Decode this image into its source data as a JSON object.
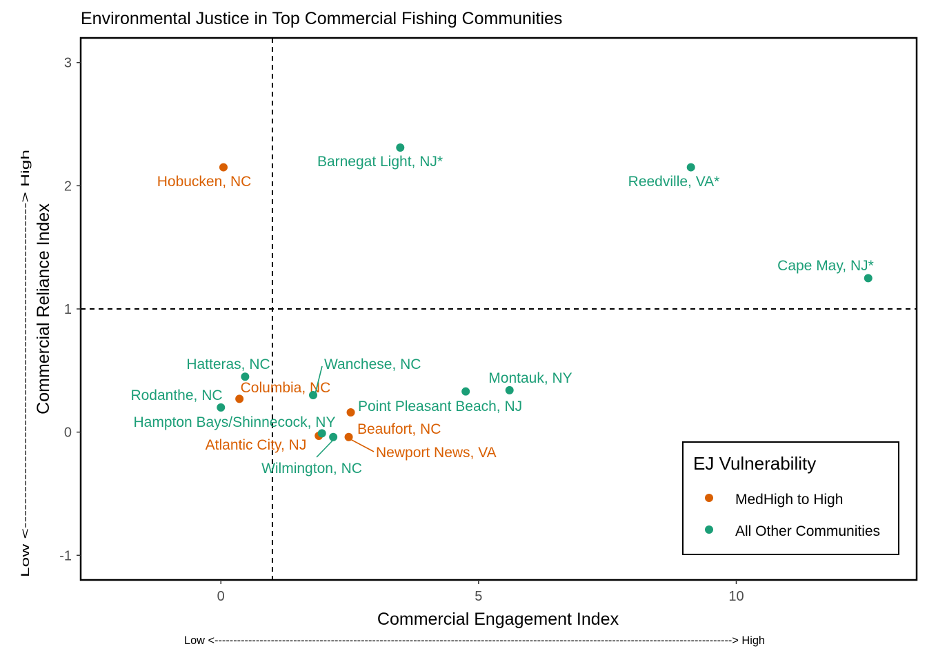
{
  "chart_data": {
    "type": "scatter",
    "title": "Environmental Justice in Top Commercial Fishing Communities",
    "xlabel": "Commercial Engagement Index",
    "ylabel": "Commercial Reliance Index",
    "x_arrow_label": "Low <------------------------------------------------------------------------------------------------------------------------------------------> High",
    "y_arrow_label": "Low <------------------------------------------------------> High",
    "xlim": [
      -2.72,
      13.5
    ],
    "ylim": [
      -1.2,
      3.2
    ],
    "x_ticks": [
      0,
      5,
      10
    ],
    "x_tick_labels": [
      "0",
      "5",
      "10"
    ],
    "y_ticks": [
      -1,
      0,
      1,
      2,
      3
    ],
    "y_tick_labels": [
      "-1",
      "0",
      "1",
      "2",
      "3"
    ],
    "reference_lines": {
      "x": 1,
      "y": 1
    },
    "grid": false,
    "legend": {
      "title": "EJ Vulnerability",
      "placement": "bottom-right",
      "entries": [
        {
          "label": "MedHigh to High",
          "color": "#d95f02"
        },
        {
          "label": "All Other Communities",
          "color": "#1b9e77"
        }
      ]
    },
    "series": [
      {
        "name": "MedHigh to High",
        "color": "#d95f02",
        "points": [
          {
            "label": "Hobucken, NC",
            "x": 0.05,
            "y": 2.15
          },
          {
            "label": "Columbia, NC",
            "x": 0.36,
            "y": 0.27
          },
          {
            "label": "Beaufort, NC",
            "x": 2.52,
            "y": 0.16
          },
          {
            "label": "Atlantic City, NJ",
            "x": 1.9,
            "y": -0.03
          },
          {
            "label": "Newport News, VA",
            "x": 2.48,
            "y": -0.04
          }
        ]
      },
      {
        "name": "All Other Communities",
        "color": "#1b9e77",
        "points": [
          {
            "label": "Barnegat Light, NJ*",
            "x": 3.48,
            "y": 2.31
          },
          {
            "label": "Reedville, VA*",
            "x": 9.12,
            "y": 2.15
          },
          {
            "label": "Cape May, NJ*",
            "x": 12.56,
            "y": 1.25
          },
          {
            "label": "Hatteras, NC",
            "x": 0.47,
            "y": 0.45
          },
          {
            "label": "Wanchese, NC",
            "x": 1.79,
            "y": 0.3
          },
          {
            "label": "Rodanthe, NC",
            "x": 0.0,
            "y": 0.2
          },
          {
            "label": "Montauk, NY",
            "x": 5.6,
            "y": 0.34
          },
          {
            "label": "Point Pleasant Beach, NJ",
            "x": 4.75,
            "y": 0.33
          },
          {
            "label": "Hampton Bays/Shinnecock, NY",
            "x": 1.96,
            "y": -0.01
          },
          {
            "label": "Wilmington, NC",
            "x": 2.18,
            "y": -0.04
          }
        ]
      }
    ]
  }
}
